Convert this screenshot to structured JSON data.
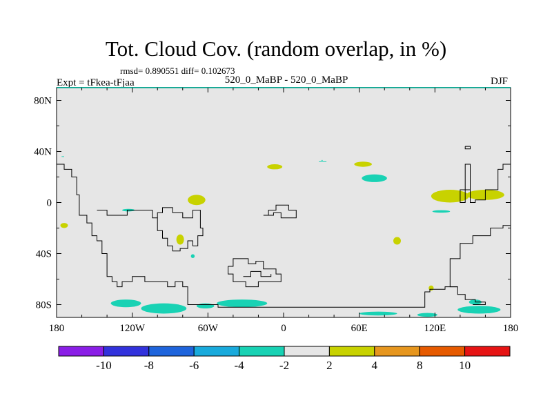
{
  "header": {
    "title": "Tot. Cloud Cov. (random overlap, in %)",
    "stats": "rmsd= 0.890551  diff= 0.102673",
    "left_label": "Expt = tFkea-tFjaa",
    "center_label": "520_0_MaBP - 520_0_MaBP",
    "right_label": "DJF"
  },
  "chart_data": {
    "type": "heatmap",
    "projection": "cylindrical equidistant",
    "xlim": [
      -180,
      180
    ],
    "ylim": [
      -90,
      90
    ],
    "x_ticks": [
      {
        "value": -180,
        "label": "180"
      },
      {
        "value": -120,
        "label": "120W"
      },
      {
        "value": -60,
        "label": "60W"
      },
      {
        "value": 0,
        "label": "0"
      },
      {
        "value": 60,
        "label": "60E"
      },
      {
        "value": 120,
        "label": "120E"
      },
      {
        "value": 180,
        "label": "180"
      }
    ],
    "y_ticks": [
      {
        "value": 80,
        "label": "80N"
      },
      {
        "value": 40,
        "label": "40N"
      },
      {
        "value": 0,
        "label": "0"
      },
      {
        "value": -40,
        "label": "40S"
      },
      {
        "value": -80,
        "label": "80S"
      }
    ],
    "background_color": "#e6e6e6",
    "colorbar": {
      "tick_labels": [
        "-10",
        "-8",
        "-6",
        "-4",
        "-2",
        "2",
        "4",
        "8",
        "10"
      ],
      "colors": [
        "#8a1ee6",
        "#3232dc",
        "#1e64dc",
        "#19aadc",
        "#19d2b4",
        "#e6e6e6",
        "#c8d200",
        "#e6961e",
        "#e65a00",
        "#e61414"
      ]
    },
    "fields": [
      {
        "level": "2 to 4",
        "color": "#c8d200",
        "lon": -69,
        "lat": 2,
        "dlon": 7,
        "dlat": 4
      },
      {
        "level": "2 to 4",
        "color": "#c8d200",
        "lon": -82,
        "lat": -29,
        "dlon": 3,
        "dlat": 4
      },
      {
        "level": "2 to 4",
        "color": "#c8d200",
        "lon": -7,
        "lat": 28,
        "dlon": 6,
        "dlat": 2
      },
      {
        "level": "2 to 4",
        "color": "#c8d200",
        "lon": 63,
        "lat": 30,
        "dlon": 7,
        "dlat": 2
      },
      {
        "level": "2 to 4",
        "color": "#c8d200",
        "lon": 132,
        "lat": 5,
        "dlon": 15,
        "dlat": 5
      },
      {
        "level": "2 to 4",
        "color": "#c8d200",
        "lon": 160,
        "lat": 6,
        "dlon": 15,
        "dlat": 4
      },
      {
        "level": "2 to 4",
        "color": "#c8d200",
        "lon": -174,
        "lat": -18,
        "dlon": 3,
        "dlat": 2
      },
      {
        "level": "2 to 4",
        "color": "#c8d200",
        "lon": 90,
        "lat": -30,
        "dlon": 3,
        "dlat": 3
      },
      {
        "level": "2 to 4",
        "color": "#c8d200",
        "lon": 117,
        "lat": -67,
        "dlon": 2,
        "dlat": 2
      },
      {
        "level": "-4 to -2",
        "color": "#19d2b4",
        "lon": 72,
        "lat": 19,
        "dlon": 10,
        "dlat": 3
      },
      {
        "level": "-4 to -2",
        "color": "#19d2b4",
        "lon": -125,
        "lat": -79,
        "dlon": 12,
        "dlat": 3
      },
      {
        "level": "-4 to -2",
        "color": "#19d2b4",
        "lon": -95,
        "lat": -83,
        "dlon": 18,
        "dlat": 4
      },
      {
        "level": "-4 to -2",
        "color": "#19d2b4",
        "lon": -62,
        "lat": -81,
        "dlon": 7,
        "dlat": 2
      },
      {
        "level": "-4 to -2",
        "color": "#19d2b4",
        "lon": -33,
        "lat": -79,
        "dlon": 20,
        "dlat": 3
      },
      {
        "level": "-4 to -2",
        "color": "#19d2b4",
        "lon": 155,
        "lat": -84,
        "dlon": 17,
        "dlat": 3
      },
      {
        "level": "-4 to -2",
        "color": "#19d2b4",
        "lon": 114,
        "lat": -88,
        "dlon": 8,
        "dlat": 1.5
      },
      {
        "level": "-4 to -2",
        "color": "#19d2b4",
        "lon": 75,
        "lat": -87,
        "dlon": 15,
        "dlat": 1.5
      },
      {
        "level": "-4 to -2",
        "color": "#19d2b4",
        "lon": 152,
        "lat": -78,
        "dlon": 5,
        "dlat": 2
      },
      {
        "level": "-4 to -2",
        "color": "#19d2b4",
        "lon": 125,
        "lat": -7,
        "dlon": 7,
        "dlat": 1
      },
      {
        "level": "-4 to -2",
        "color": "#19d2b4",
        "lon": -123,
        "lat": -6,
        "dlon": 5,
        "dlat": 1
      },
      {
        "level": "-4 to -2",
        "color": "#19d2b4",
        "lon": -72,
        "lat": -42,
        "dlon": 1.5,
        "dlat": 1.5
      }
    ],
    "coastlines": [
      [
        [
          -180,
          30
        ],
        [
          -174,
          30
        ],
        [
          -174,
          26
        ],
        [
          -168,
          26
        ],
        [
          -168,
          20
        ],
        [
          -164,
          20
        ],
        [
          -164,
          6
        ],
        [
          -162,
          6
        ],
        [
          -162,
          -10
        ],
        [
          -156,
          -10
        ],
        [
          -156,
          -16
        ],
        [
          -152,
          -16
        ],
        [
          -152,
          -26
        ],
        [
          -148,
          -26
        ],
        [
          -148,
          -30
        ],
        [
          -144,
          -30
        ],
        [
          -144,
          -40
        ],
        [
          -140,
          -40
        ],
        [
          -140,
          -58
        ],
        [
          -136,
          -58
        ],
        [
          -136,
          -62
        ],
        [
          -132,
          -62
        ],
        [
          -132,
          -66
        ],
        [
          -128,
          -66
        ],
        [
          -128,
          -62
        ],
        [
          -120,
          -62
        ],
        [
          -120,
          -58
        ],
        [
          -110,
          -58
        ],
        [
          -110,
          -62
        ],
        [
          -92,
          -62
        ],
        [
          -92,
          -66
        ],
        [
          -86,
          -66
        ],
        [
          -86,
          -62
        ],
        [
          -80,
          -62
        ],
        [
          -80,
          -66
        ],
        [
          -76,
          -66
        ],
        [
          -76,
          -80
        ],
        [
          -52,
          -80
        ],
        [
          -52,
          -82
        ],
        [
          112,
          -82
        ],
        [
          112,
          -70
        ],
        [
          116,
          -70
        ],
        [
          116,
          -68
        ],
        [
          128,
          -68
        ],
        [
          128,
          -66
        ],
        [
          138,
          -66
        ],
        [
          138,
          -72
        ],
        [
          144,
          -72
        ],
        [
          144,
          -76
        ],
        [
          152,
          -76
        ],
        [
          152,
          -78
        ],
        [
          160,
          -78
        ],
        [
          160,
          -80
        ],
        [
          150,
          -80
        ]
      ],
      [
        [
          180,
          -18
        ],
        [
          174,
          -18
        ],
        [
          174,
          -20
        ],
        [
          164,
          -20
        ],
        [
          164,
          -26
        ],
        [
          150,
          -26
        ],
        [
          150,
          -32
        ],
        [
          140,
          -32
        ],
        [
          140,
          -44
        ],
        [
          132,
          -44
        ],
        [
          132,
          -66
        ],
        [
          138,
          -66
        ]
      ],
      [
        [
          180,
          30
        ],
        [
          174,
          30
        ],
        [
          174,
          26
        ],
        [
          170,
          26
        ],
        [
          170,
          10
        ],
        [
          160,
          10
        ],
        [
          160,
          2
        ],
        [
          152,
          2
        ],
        [
          152,
          0
        ],
        [
          148,
          0
        ],
        [
          148,
          30
        ],
        [
          144,
          30
        ],
        [
          144,
          0
        ],
        [
          140,
          0
        ],
        [
          140,
          10
        ],
        [
          148,
          10
        ]
      ],
      [
        [
          144,
          44
        ],
        [
          148,
          44
        ],
        [
          148,
          42
        ],
        [
          144,
          42
        ],
        [
          144,
          44
        ]
      ],
      [
        [
          -148,
          -6
        ],
        [
          -140,
          -6
        ],
        [
          -140,
          -10
        ],
        [
          -124,
          -10
        ],
        [
          -124,
          -6
        ],
        [
          -104,
          -6
        ],
        [
          -104,
          -12
        ],
        [
          -100,
          -12
        ],
        [
          -100,
          -22
        ],
        [
          -96,
          -22
        ],
        [
          -96,
          -28
        ],
        [
          -92,
          -28
        ],
        [
          -92,
          -34
        ],
        [
          -88,
          -34
        ],
        [
          -88,
          -38
        ],
        [
          -82,
          -38
        ],
        [
          -82,
          -36
        ],
        [
          -76,
          -36
        ],
        [
          -76,
          -30
        ],
        [
          -72,
          -30
        ],
        [
          -72,
          -34
        ],
        [
          -68,
          -34
        ],
        [
          -68,
          -26
        ],
        [
          -64,
          -26
        ],
        [
          -64,
          -20
        ],
        [
          -66,
          -20
        ],
        [
          -66,
          -6
        ],
        [
          -72,
          -6
        ],
        [
          -72,
          -12
        ],
        [
          -80,
          -12
        ],
        [
          -80,
          -8
        ],
        [
          -88,
          -8
        ],
        [
          -88,
          -4
        ],
        [
          -96,
          -4
        ],
        [
          -96,
          -8
        ],
        [
          -100,
          -8
        ],
        [
          -100,
          -22
        ]
      ],
      [
        [
          -16,
          -10
        ],
        [
          -12,
          -10
        ],
        [
          -12,
          -6
        ],
        [
          -6,
          -6
        ],
        [
          -6,
          -2
        ],
        [
          4,
          -2
        ],
        [
          4,
          -6
        ],
        [
          10,
          -6
        ],
        [
          10,
          -12
        ],
        [
          -2,
          -12
        ],
        [
          -2,
          -8
        ],
        [
          -8,
          -8
        ],
        [
          -8,
          -10
        ],
        [
          -16,
          -10
        ]
      ],
      [
        [
          -44,
          -50
        ],
        [
          -40,
          -50
        ],
        [
          -40,
          -44
        ],
        [
          -28,
          -44
        ],
        [
          -28,
          -48
        ],
        [
          -22,
          -48
        ],
        [
          -22,
          -46
        ],
        [
          -16,
          -46
        ],
        [
          -16,
          -52
        ],
        [
          -6,
          -52
        ],
        [
          -6,
          -56
        ],
        [
          -2,
          -56
        ],
        [
          -2,
          -62
        ],
        [
          -20,
          -62
        ],
        [
          -20,
          -66
        ],
        [
          -30,
          -66
        ],
        [
          -30,
          -62
        ],
        [
          -40,
          -62
        ],
        [
          -40,
          -56
        ],
        [
          -44,
          -56
        ],
        [
          -44,
          -50
        ]
      ],
      [
        [
          -32,
          -58
        ],
        [
          -26,
          -58
        ],
        [
          -26,
          -54
        ],
        [
          -18,
          -54
        ],
        [
          -18,
          -58
        ],
        [
          -10,
          -58
        ],
        [
          -10,
          -56
        ]
      ]
    ],
    "small_features": [
      [
        [
          -176,
          36
        ],
        [
          -174,
          36
        ]
      ],
      [
        [
          28,
          32
        ],
        [
          34,
          32
        ]
      ],
      [
        [
          30,
          33
        ],
        [
          31,
          33
        ]
      ]
    ]
  }
}
